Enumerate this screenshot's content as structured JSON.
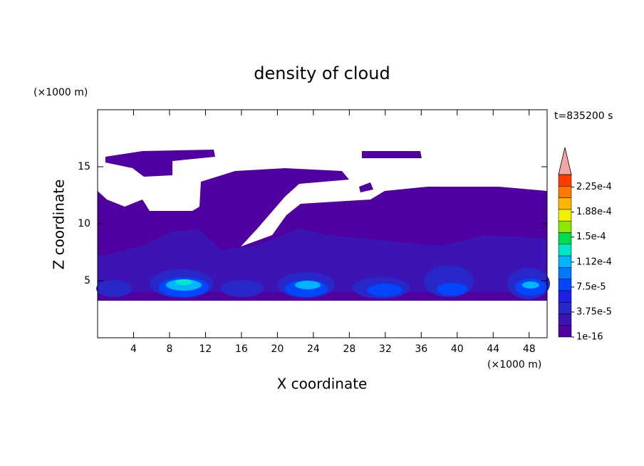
{
  "chart_data": {
    "type": "contour",
    "title": "density of cloud",
    "x_label": "X coordinate",
    "y_label": "Z coordinate",
    "x_unit": "(×1000 m)",
    "y_unit": "(×1000 m)",
    "time_label": "t=835200 s",
    "xlim": [
      0,
      50
    ],
    "ylim": [
      0,
      20
    ],
    "xticks": [
      4,
      8,
      12,
      16,
      20,
      24,
      28,
      32,
      36,
      40,
      44,
      48
    ],
    "yticks": [
      5,
      10,
      15
    ],
    "colorbar": {
      "lim": [
        0,
        0.00024375
      ],
      "ticks": [
        {
          "value": 1e-16,
          "label": "1e-16"
        },
        {
          "value": 3.75e-05,
          "label": "3.75e-5"
        },
        {
          "value": 7.5e-05,
          "label": "7.5e-5"
        },
        {
          "value": 0.0001125,
          "label": "1.12e-4"
        },
        {
          "value": 0.00015,
          "label": "1.5e-4"
        },
        {
          "value": 0.0001875,
          "label": "1.88e-4"
        },
        {
          "value": 0.000225,
          "label": "2.25e-4"
        }
      ],
      "colors": [
        "#5000a0",
        "#3c14b4",
        "#2828c8",
        "#1e1ee6",
        "#0046ff",
        "#0078ff",
        "#00b4ff",
        "#00e6c8",
        "#00dc50",
        "#8ce600",
        "#f0f000",
        "#ffb400",
        "#ff7800",
        "#ff3c00"
      ],
      "extend_color": "#f4a6a6"
    }
  }
}
